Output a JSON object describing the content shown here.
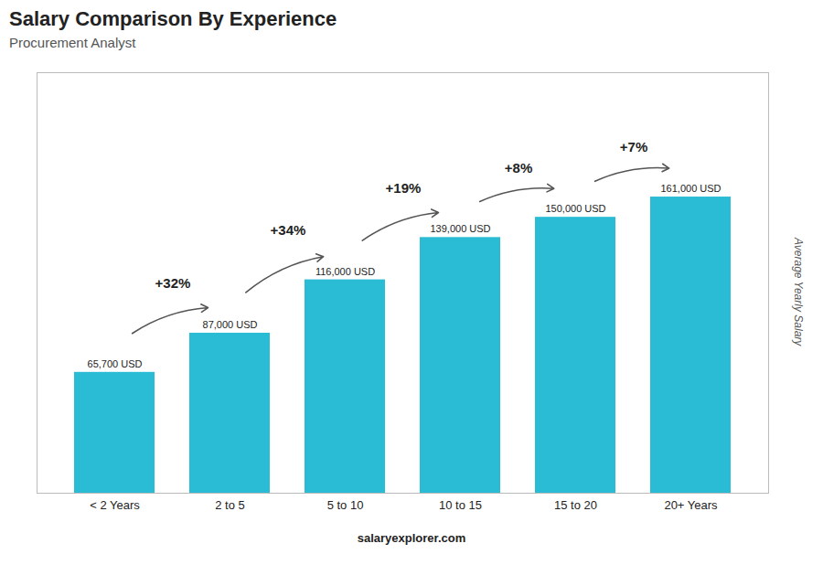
{
  "chart_data": {
    "type": "bar",
    "title": "Salary Comparison By Experience",
    "subtitle": "Procurement Analyst",
    "caption": "salaryexplorer.com",
    "y_label": "Average Yearly Salary",
    "categories": [
      "< 2 Years",
      "2 to 5",
      "5 to 10",
      "10 to 15",
      "15 to 20",
      "20+ Years"
    ],
    "values": [
      65700,
      87000,
      116000,
      139000,
      150000,
      161000
    ],
    "value_labels": [
      "65,700 USD",
      "87,000 USD",
      "116,000 USD",
      "139,000 USD",
      "150,000 USD",
      "161,000 USD"
    ],
    "data_labels": true,
    "annotations": [
      "+32%",
      "+34%",
      "+19%",
      "+8%",
      "+7%"
    ],
    "color": "#29bcd4",
    "ylim": [
      0,
      228620
    ],
    "tick_labels": "x",
    "grid": false
  }
}
